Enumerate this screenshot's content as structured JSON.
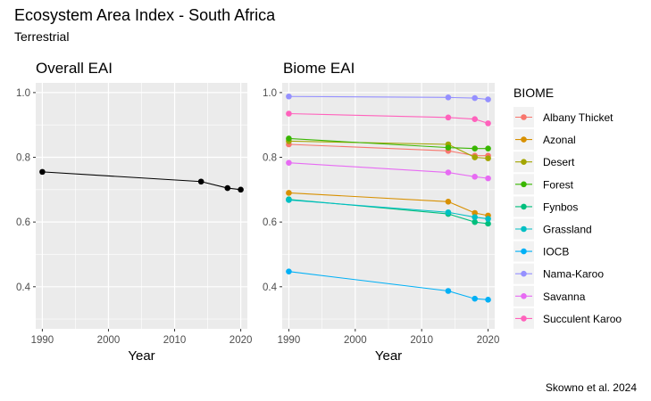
{
  "title": "Ecosystem Area Index - South Africa",
  "subtitle": "Terrestrial",
  "caption": "Skowno et al. 2024",
  "colors": {
    "panel_bg": "#EBEBEB",
    "grid": "#FFFFFF",
    "overall_line": "#000000"
  },
  "chart_data": [
    {
      "type": "line",
      "title": "Overall EAI",
      "xlabel": "Year",
      "ylabel": "",
      "xlim": [
        1989,
        2021
      ],
      "ylim": [
        0.27,
        1.03
      ],
      "x_ticks": [
        1990,
        2000,
        2010,
        2020
      ],
      "y_ticks": [
        0.4,
        0.6,
        0.8,
        1.0
      ],
      "y_tick_labels": [
        "0.4",
        "0.6",
        "0.8",
        "1.0"
      ],
      "grid": true,
      "x": [
        1990,
        2014,
        2018,
        2020
      ],
      "series": [
        {
          "color": "#000000",
          "values": [
            0.755,
            0.725,
            0.705,
            0.7
          ]
        }
      ]
    },
    {
      "type": "line",
      "title": "Biome EAI",
      "xlabel": "Year",
      "ylabel": "",
      "xlim": [
        1989,
        2021
      ],
      "ylim": [
        0.27,
        1.03
      ],
      "x_ticks": [
        1990,
        2000,
        2010,
        2020
      ],
      "y_ticks": [
        0.4,
        0.6,
        0.8,
        1.0
      ],
      "y_tick_labels": [
        "0.4",
        "0.6",
        "0.8",
        "1.0"
      ],
      "grid": true,
      "legend_title": "BIOME",
      "legend_position": "right",
      "x": [
        1990,
        2014,
        2018,
        2020
      ],
      "series": [
        {
          "name": "Albany Thicket",
          "color": "#F8766D",
          "values": [
            0.84,
            0.82,
            0.805,
            0.805
          ]
        },
        {
          "name": "Azonal",
          "color": "#D89000",
          "values": [
            0.69,
            0.663,
            0.628,
            0.62
          ]
        },
        {
          "name": "Desert",
          "color": "#A3A500",
          "values": [
            0.85,
            0.84,
            0.8,
            0.797
          ]
        },
        {
          "name": "Forest",
          "color": "#39B600",
          "values": [
            0.858,
            0.83,
            0.827,
            0.827
          ]
        },
        {
          "name": "Fynbos",
          "color": "#00BF7D",
          "values": [
            0.67,
            0.625,
            0.6,
            0.595
          ]
        },
        {
          "name": "Grassland",
          "color": "#00BFC4",
          "values": [
            0.668,
            0.63,
            0.615,
            0.61
          ]
        },
        {
          "name": "IOCB",
          "color": "#00B0F6",
          "values": [
            0.447,
            0.387,
            0.363,
            0.36
          ]
        },
        {
          "name": "Nama-Karoo",
          "color": "#9590FF",
          "values": [
            0.988,
            0.985,
            0.983,
            0.979
          ]
        },
        {
          "name": "Savanna",
          "color": "#E76BF3",
          "values": [
            0.783,
            0.753,
            0.74,
            0.735
          ]
        },
        {
          "name": "Succulent Karoo",
          "color": "#FF62BC",
          "values": [
            0.935,
            0.923,
            0.918,
            0.905
          ]
        }
      ]
    }
  ]
}
